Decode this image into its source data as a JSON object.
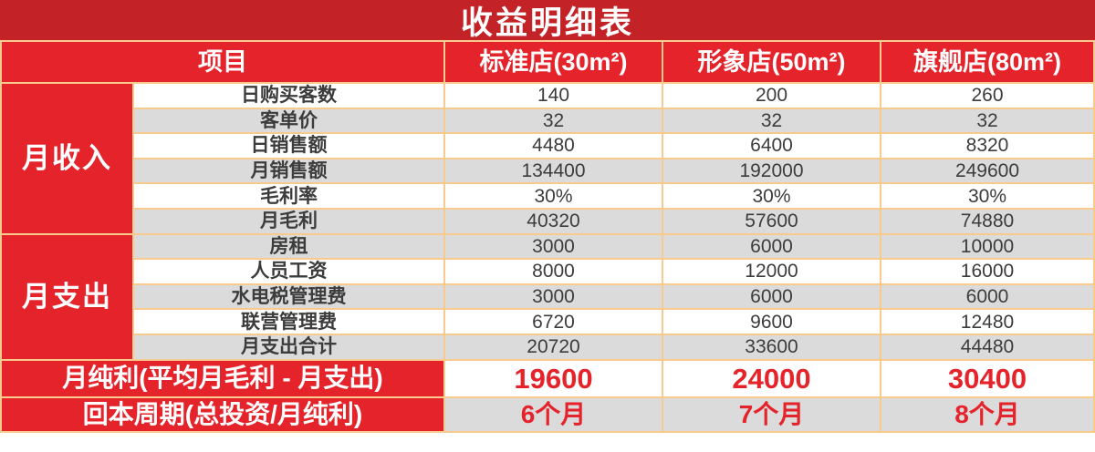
{
  "title": "收益明细表",
  "colors": {
    "title_bg": "#C32227",
    "accent_red": "#E5232B",
    "grid_line_orange": "#F9CA8E",
    "row_gray": "#DBDBDB",
    "text_dark": "#3C3C3C"
  },
  "header": {
    "item_col": "项目",
    "store_cols": [
      "标准店(30m²)",
      "形象店(50m²)",
      "旗舰店(80m²)"
    ]
  },
  "groups": [
    {
      "label": "月收入",
      "rows": [
        {
          "label": "日购买客数",
          "values": [
            "140",
            "200",
            "260"
          ]
        },
        {
          "label": "客单价",
          "values": [
            "32",
            "32",
            "32"
          ]
        },
        {
          "label": "日销售额",
          "values": [
            "4480",
            "6400",
            "8320"
          ]
        },
        {
          "label": "月销售额",
          "values": [
            "134400",
            "192000",
            "249600"
          ]
        },
        {
          "label": "毛利率",
          "values": [
            "30%",
            "30%",
            "30%"
          ]
        },
        {
          "label": "月毛利",
          "values": [
            "40320",
            "57600",
            "74880"
          ]
        }
      ]
    },
    {
      "label": "月支出",
      "rows": [
        {
          "label": "房租",
          "values": [
            "3000",
            "6000",
            "10000"
          ]
        },
        {
          "label": "人员工资",
          "values": [
            "8000",
            "12000",
            "16000"
          ]
        },
        {
          "label": "水电税管理费",
          "values": [
            "3000",
            "6000",
            "6000"
          ]
        },
        {
          "label": "联营管理费",
          "values": [
            "6720",
            "9600",
            "12480"
          ]
        },
        {
          "label": "月支出合计",
          "values": [
            "20720",
            "33600",
            "44480"
          ]
        }
      ]
    }
  ],
  "footer": [
    {
      "label": "月纯利(平均月毛利 - 月支出)",
      "values": [
        "19600",
        "24000",
        "30400"
      ]
    },
    {
      "label": "回本周期(总投资/月纯利)",
      "values": [
        "6个月",
        "7个月",
        "8个月"
      ]
    }
  ],
  "chart_data": {
    "type": "table",
    "title": "收益明细表",
    "columns": [
      "项目",
      "标准店(30m²)",
      "形象店(50m²)",
      "旗舰店(80m²)"
    ],
    "row_groups": [
      {
        "group": "月收入",
        "rows": [
          {
            "item": "日购买客数",
            "values": [
              140,
              200,
              260
            ]
          },
          {
            "item": "客单价",
            "values": [
              32,
              32,
              32
            ]
          },
          {
            "item": "日销售额",
            "values": [
              4480,
              6400,
              8320
            ]
          },
          {
            "item": "月销售额",
            "values": [
              134400,
              192000,
              249600
            ]
          },
          {
            "item": "毛利率",
            "values": [
              "30%",
              "30%",
              "30%"
            ]
          },
          {
            "item": "月毛利",
            "values": [
              40320,
              57600,
              74880
            ]
          }
        ]
      },
      {
        "group": "月支出",
        "rows": [
          {
            "item": "房租",
            "values": [
              3000,
              6000,
              10000
            ]
          },
          {
            "item": "人员工资",
            "values": [
              8000,
              12000,
              16000
            ]
          },
          {
            "item": "水电税管理费",
            "values": [
              3000,
              6000,
              6000
            ]
          },
          {
            "item": "联营管理费",
            "values": [
              6720,
              9600,
              12480
            ]
          },
          {
            "item": "月支出合计",
            "values": [
              20720,
              33600,
              44480
            ]
          }
        ]
      }
    ],
    "summary_rows": [
      {
        "item": "月纯利(平均月毛利 - 月支出)",
        "values": [
          19600,
          24000,
          30400
        ]
      },
      {
        "item": "回本周期(总投资/月纯利)",
        "values": [
          "6个月",
          "7个月",
          "8个月"
        ]
      }
    ]
  }
}
